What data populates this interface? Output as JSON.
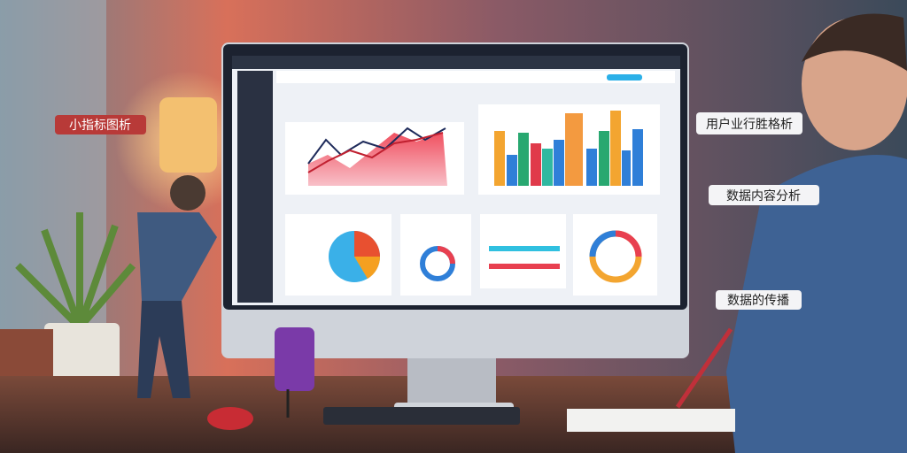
{
  "callouts": {
    "left": "小指标图析",
    "right_top": "用户业行胜格析",
    "right_middle": "数据内容分析",
    "right_bottom": "数据的传播"
  }
}
